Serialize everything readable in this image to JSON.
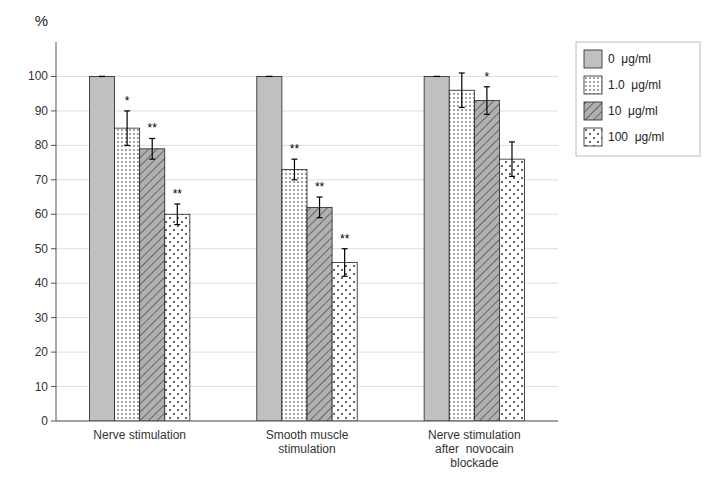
{
  "chart_data": {
    "type": "bar",
    "ylabel": "%",
    "categories": [
      "Nerve stimulation",
      "Smooth muscle\nstimulation",
      "Nerve stimulation\nafter  novocain\nblockade"
    ],
    "series": [
      {
        "name": "0  μg/ml",
        "color": "#c0c0c0",
        "values": [
          100,
          100,
          100
        ],
        "errors": [
          0,
          0,
          0
        ],
        "annotations": [
          null,
          null,
          null
        ]
      },
      {
        "name": "1.0  μg/ml",
        "color": "#ffffff",
        "values": [
          85,
          73,
          96
        ],
        "errors": [
          5,
          3,
          5
        ],
        "annotations": [
          "*",
          "**",
          null
        ]
      },
      {
        "name": "10  μg/ml",
        "color": "#b0b0b0",
        "values": [
          79,
          62,
          93
        ],
        "errors": [
          3,
          3,
          4
        ],
        "annotations": [
          "**",
          "**",
          "*"
        ]
      },
      {
        "name": "100  μg/ml",
        "color": "#ffffff",
        "values": [
          60,
          46,
          76
        ],
        "errors": [
          3,
          4,
          5
        ],
        "annotations": [
          "**",
          "**",
          null
        ]
      }
    ],
    "ylim": [
      0,
      110
    ],
    "yticks": [
      0,
      10,
      20,
      30,
      40,
      50,
      60,
      70,
      80,
      90,
      100
    ],
    "grid": true,
    "legend": "upper right"
  }
}
